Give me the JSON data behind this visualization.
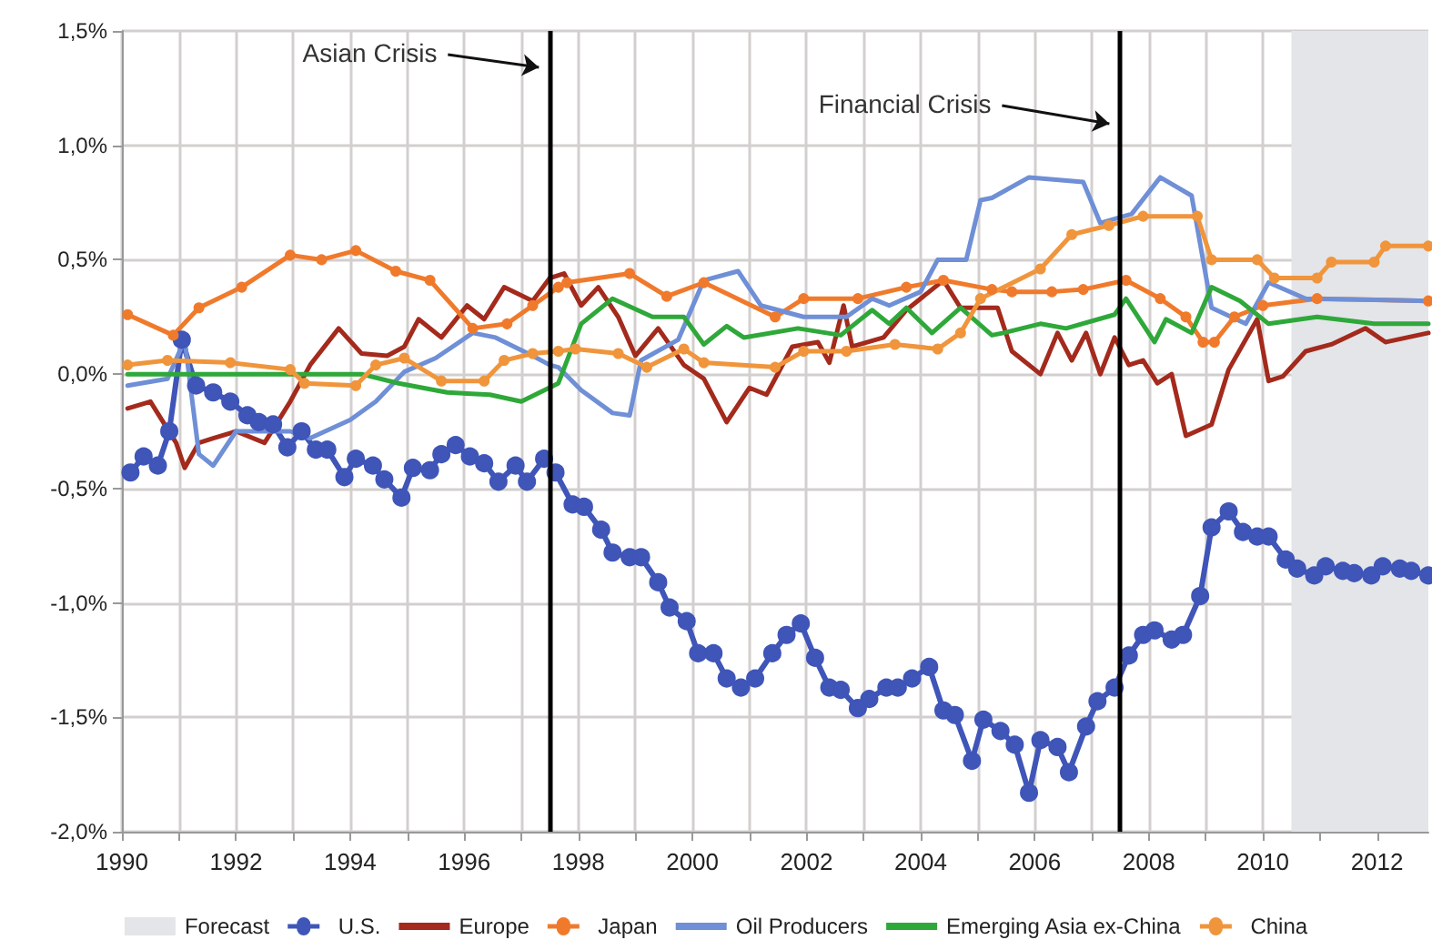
{
  "chart_data": {
    "type": "line",
    "xlim": [
      1990,
      2012.9
    ],
    "xticks": [
      1990,
      {
        "value": 1991,
        "label": null
      },
      1992,
      {
        "value": 1993,
        "label": null
      },
      1994,
      {
        "value": 1995,
        "label": null
      },
      1996,
      {
        "value": 1997,
        "label": null
      },
      1998,
      {
        "value": 1999,
        "label": null
      },
      2000,
      {
        "value": 2001,
        "label": null
      },
      2002,
      {
        "value": 2003,
        "label": null
      },
      2004,
      {
        "value": 2005,
        "label": null
      },
      2006,
      {
        "value": 2007,
        "label": null
      },
      2008,
      {
        "value": 2009,
        "label": null
      },
      2010,
      {
        "value": 2011,
        "label": null
      },
      2012
    ],
    "ylim": [
      -2,
      1.5
    ],
    "yticks": [
      {
        "value": -2,
        "label": "-2,0%"
      },
      {
        "value": -1.5,
        "label": "-1,5%"
      },
      {
        "value": -1,
        "label": "-1,0%"
      },
      {
        "value": -0.5,
        "label": "-0,5%"
      },
      {
        "value": 0,
        "label": "0,0%"
      },
      {
        "value": 0.5,
        "label": "0,5%"
      },
      {
        "value": 1,
        "label": "1,0%"
      },
      {
        "value": 1.5,
        "label": "1,5%"
      }
    ],
    "grid": true,
    "legend": "bottom",
    "line_style": "solid",
    "bands": [
      {
        "axis": "x",
        "from": 2010.5,
        "to": 2012.9,
        "label": "Forecast",
        "color": "#e3e5e8"
      }
    ],
    "ref_lines": [
      {
        "axis": "x",
        "value": 1997.5,
        "color": "#000000"
      },
      {
        "axis": "x",
        "value": 2007.5,
        "color": "#000000"
      }
    ],
    "annotations": [
      "Asian Crisis",
      "Financial Crisis"
    ],
    "series": [
      {
        "name": "U.S.",
        "color": "#3f55b8",
        "marker": "circle",
        "x": [
          1990.15,
          1990.38,
          1990.63,
          1990.83,
          1991.05,
          1991.3,
          1991.6,
          1991.9,
          1992.2,
          1992.4,
          1992.65,
          1992.9,
          1993.15,
          1993.4,
          1993.6,
          1993.9,
          1994.1,
          1994.4,
          1994.6,
          1994.9,
          1995.1,
          1995.4,
          1995.6,
          1995.85,
          1996.1,
          1996.35,
          1996.6,
          1996.9,
          1997.1,
          1997.4,
          1997.6,
          1997.9,
          1998.1,
          1998.4,
          1998.6,
          1998.9,
          1999.1,
          1999.4,
          1999.6,
          1999.9,
          2000.1,
          2000.37,
          2000.6,
          2000.85,
          2001.1,
          2001.4,
          2001.65,
          2001.9,
          2002.15,
          2002.4,
          2002.6,
          2002.9,
          2003.1,
          2003.4,
          2003.6,
          2003.85,
          2004.15,
          2004.4,
          2004.6,
          2004.9,
          2005.1,
          2005.4,
          2005.65,
          2005.9,
          2006.1,
          2006.4,
          2006.6,
          2006.9,
          2007.1,
          2007.4,
          2007.65,
          2007.9,
          2008.1,
          2008.4,
          2008.6,
          2008.9,
          2009.1,
          2009.4,
          2009.65,
          2009.9,
          2010.1,
          2010.4,
          2010.6,
          2010.9,
          2011.1,
          2011.4,
          2011.6,
          2011.9,
          2012.1,
          2012.4,
          2012.6,
          2012.9
        ],
        "values": [
          -0.43,
          -0.36,
          -0.4,
          -0.25,
          0.15,
          -0.05,
          -0.08,
          -0.12,
          -0.18,
          -0.21,
          -0.22,
          -0.32,
          -0.25,
          -0.33,
          -0.33,
          -0.45,
          -0.37,
          -0.4,
          -0.46,
          -0.54,
          -0.41,
          -0.42,
          -0.35,
          -0.31,
          -0.36,
          -0.39,
          -0.47,
          -0.4,
          -0.47,
          -0.37,
          -0.43,
          -0.57,
          -0.58,
          -0.68,
          -0.78,
          -0.8,
          -0.8,
          -0.91,
          -1.02,
          -1.08,
          -1.22,
          -1.22,
          -1.33,
          -1.37,
          -1.33,
          -1.22,
          -1.14,
          -1.09,
          -1.24,
          -1.37,
          -1.38,
          -1.46,
          -1.42,
          -1.37,
          -1.37,
          -1.33,
          -1.28,
          -1.47,
          -1.49,
          -1.69,
          -1.51,
          -1.56,
          -1.62,
          -1.83,
          -1.6,
          -1.63,
          -1.74,
          -1.54,
          -1.43,
          -1.37,
          -1.23,
          -1.14,
          -1.12,
          -1.16,
          -1.14,
          -0.97,
          -0.67,
          -0.6,
          -0.69,
          -0.71,
          -0.71,
          -0.81,
          -0.85,
          -0.88,
          -0.84,
          -0.86,
          -0.87,
          -0.88,
          -0.84,
          -0.85,
          -0.86,
          -0.88
        ]
      },
      {
        "name": "Europe",
        "color": "#a32a1c",
        "marker": "none",
        "x": [
          1990.1,
          1990.5,
          1990.95,
          1991.1,
          1991.35,
          1991.6,
          1992.0,
          1992.5,
          1992.95,
          1993.3,
          1993.8,
          1994.2,
          1994.65,
          1994.95,
          1995.2,
          1995.6,
          1996.05,
          1996.35,
          1996.7,
          1997.2,
          1997.5,
          1997.75,
          1998.05,
          1998.35,
          1998.7,
          1999.0,
          1999.4,
          1999.85,
          2000.2,
          2000.6,
          2001.0,
          2001.3,
          2001.75,
          2002.2,
          2002.4,
          2002.65,
          2002.8,
          2003.35,
          2003.75,
          2004.4,
          2004.7,
          2005.05,
          2005.35,
          2005.6,
          2006.1,
          2006.4,
          2006.65,
          2006.9,
          2007.15,
          2007.4,
          2007.65,
          2007.9,
          2008.15,
          2008.4,
          2008.65,
          2009.1,
          2009.4,
          2009.9,
          2010.1,
          2010.35,
          2010.75,
          2011.2,
          2011.8,
          2012.15,
          2012.9
        ],
        "values": [
          -0.15,
          -0.12,
          -0.3,
          -0.41,
          -0.3,
          -0.28,
          -0.25,
          -0.3,
          -0.12,
          0.04,
          0.2,
          0.09,
          0.08,
          0.12,
          0.24,
          0.16,
          0.3,
          0.24,
          0.38,
          0.32,
          0.42,
          0.44,
          0.3,
          0.38,
          0.25,
          0.08,
          0.2,
          0.04,
          -0.02,
          -0.21,
          -0.06,
          -0.09,
          0.12,
          0.14,
          0.05,
          0.3,
          0.12,
          0.16,
          0.28,
          0.41,
          0.29,
          0.29,
          0.29,
          0.1,
          0.0,
          0.18,
          0.06,
          0.18,
          0.0,
          0.16,
          0.04,
          0.06,
          -0.04,
          0.0,
          -0.27,
          -0.22,
          0.02,
          0.24,
          -0.03,
          -0.01,
          0.1,
          0.13,
          0.2,
          0.14,
          0.18
        ]
      },
      {
        "name": "Japan",
        "color": "#f07a2c",
        "marker": "circle",
        "x": [
          1990.1,
          1990.9,
          1991.35,
          1992.1,
          1992.95,
          1993.5,
          1994.1,
          1994.8,
          1995.4,
          1996.15,
          1996.75,
          1997.2,
          1997.65,
          1997.8,
          1998.9,
          1999.55,
          2000.2,
          2001.45,
          2001.95,
          2002.9,
          2003.75,
          2004.4,
          2005.25,
          2005.6,
          2006.3,
          2006.85,
          2007.6,
          2008.2,
          2008.65,
          2008.95,
          2009.15,
          2009.5,
          2010.0,
          2010.95,
          2012.9
        ],
        "values": [
          0.26,
          0.17,
          0.29,
          0.38,
          0.52,
          0.5,
          0.54,
          0.45,
          0.41,
          0.2,
          0.22,
          0.3,
          0.38,
          0.4,
          0.44,
          0.34,
          0.4,
          0.25,
          0.33,
          0.33,
          0.38,
          0.41,
          0.37,
          0.36,
          0.36,
          0.37,
          0.41,
          0.33,
          0.25,
          0.14,
          0.14,
          0.25,
          0.3,
          0.33,
          0.32
        ]
      },
      {
        "name": "Oil Producers",
        "color": "#6f8fd6",
        "marker": "none",
        "x": [
          1990.1,
          1990.8,
          1991.1,
          1991.35,
          1991.6,
          1992.0,
          1992.95,
          1993.3,
          1994.0,
          1994.45,
          1994.95,
          1995.5,
          1996.15,
          1996.55,
          1997.2,
          1997.5,
          1997.65,
          1998.05,
          1998.6,
          1998.9,
          1999.1,
          1999.75,
          2000.2,
          2000.8,
          2001.2,
          2001.95,
          2002.7,
          2003.15,
          2003.45,
          2004.0,
          2004.3,
          2004.8,
          2005.05,
          2005.25,
          2005.9,
          2006.85,
          2007.15,
          2007.7,
          2008.2,
          2008.75,
          2009.1,
          2009.7,
          2010.1,
          2010.75,
          2012.9
        ],
        "values": [
          -0.05,
          -0.02,
          0.15,
          -0.35,
          -0.4,
          -0.25,
          -0.25,
          -0.28,
          -0.2,
          -0.12,
          0.01,
          0.07,
          0.18,
          0.16,
          0.08,
          0.04,
          0.03,
          -0.07,
          -0.17,
          -0.18,
          0.06,
          0.15,
          0.41,
          0.45,
          0.3,
          0.25,
          0.25,
          0.33,
          0.3,
          0.36,
          0.5,
          0.5,
          0.76,
          0.77,
          0.86,
          0.84,
          0.66,
          0.7,
          0.86,
          0.78,
          0.29,
          0.22,
          0.4,
          0.33,
          0.32
        ]
      },
      {
        "name": "Emerging Asia ex-China",
        "color": "#2fa83a",
        "marker": "none",
        "x": [
          1990.1,
          1992.95,
          1994.2,
          1994.85,
          1995.7,
          1996.45,
          1997.0,
          1997.65,
          1998.05,
          1998.6,
          1999.3,
          1999.85,
          2000.2,
          2000.6,
          2000.9,
          2001.85,
          2002.6,
          2003.15,
          2003.45,
          2003.75,
          2004.2,
          2004.7,
          2005.25,
          2005.45,
          2006.1,
          2006.55,
          2007.4,
          2007.6,
          2008.1,
          2008.3,
          2008.75,
          2009.1,
          2009.6,
          2010.1,
          2010.95,
          2011.95,
          2012.9
        ],
        "values": [
          0.0,
          0.0,
          0.0,
          -0.04,
          -0.08,
          -0.09,
          -0.12,
          -0.04,
          0.22,
          0.33,
          0.25,
          0.25,
          0.13,
          0.21,
          0.16,
          0.2,
          0.17,
          0.28,
          0.22,
          0.29,
          0.18,
          0.29,
          0.17,
          0.18,
          0.22,
          0.2,
          0.26,
          0.33,
          0.14,
          0.24,
          0.18,
          0.38,
          0.32,
          0.22,
          0.25,
          0.22,
          0.22
        ]
      },
      {
        "name": "China",
        "color": "#f0953c",
        "marker": "circle",
        "x": [
          1990.1,
          1990.8,
          1991.9,
          1992.95,
          1993.2,
          1994.1,
          1994.45,
          1994.95,
          1995.6,
          1996.35,
          1996.7,
          1997.2,
          1997.65,
          1997.95,
          1998.7,
          1999.2,
          1999.85,
          2000.2,
          2001.45,
          2001.95,
          2002.7,
          2003.55,
          2004.3,
          2004.7,
          2005.05,
          2006.1,
          2006.65,
          2007.3,
          2007.9,
          2008.85,
          2009.1,
          2009.9,
          2010.2,
          2010.95,
          2011.2,
          2011.95,
          2012.15,
          2012.9
        ],
        "values": [
          0.04,
          0.06,
          0.05,
          0.02,
          -0.04,
          -0.05,
          0.04,
          0.07,
          -0.03,
          -0.03,
          0.06,
          0.09,
          0.1,
          0.11,
          0.09,
          0.03,
          0.11,
          0.05,
          0.03,
          0.1,
          0.1,
          0.13,
          0.11,
          0.18,
          0.33,
          0.46,
          0.61,
          0.65,
          0.69,
          0.69,
          0.5,
          0.5,
          0.42,
          0.42,
          0.49,
          0.49,
          0.56,
          0.56
        ]
      }
    ]
  }
}
